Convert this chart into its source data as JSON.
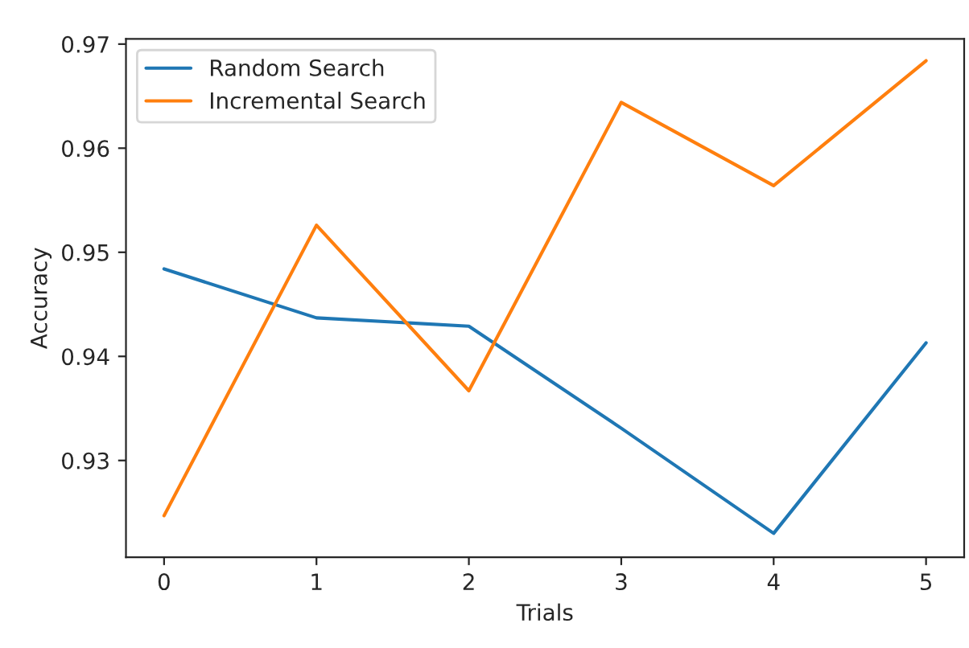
{
  "chart_data": {
    "type": "line",
    "xlabel": "Trials",
    "ylabel": "Accuracy",
    "x": [
      0,
      1,
      2,
      3,
      4,
      5
    ],
    "series": [
      {
        "name": "Random Search",
        "color": "#1f77b4",
        "values": [
          0.9484,
          0.9437,
          0.9429,
          0.9331,
          0.923,
          0.9413
        ]
      },
      {
        "name": "Incremental Search",
        "color": "#ff7f0e",
        "values": [
          0.9247,
          0.9526,
          0.9367,
          0.9644,
          0.9564,
          0.9684
        ]
      }
    ],
    "xlim": [
      -0.25,
      5.25
    ],
    "ylim": [
      0.9207,
      0.9705
    ],
    "xticks": [
      0,
      1,
      2,
      3,
      4,
      5
    ],
    "yticks": [
      0.93,
      0.94,
      0.95,
      0.96,
      0.97
    ],
    "legend": "top left",
    "grid": false,
    "marker": "none",
    "line_style": "solid"
  }
}
